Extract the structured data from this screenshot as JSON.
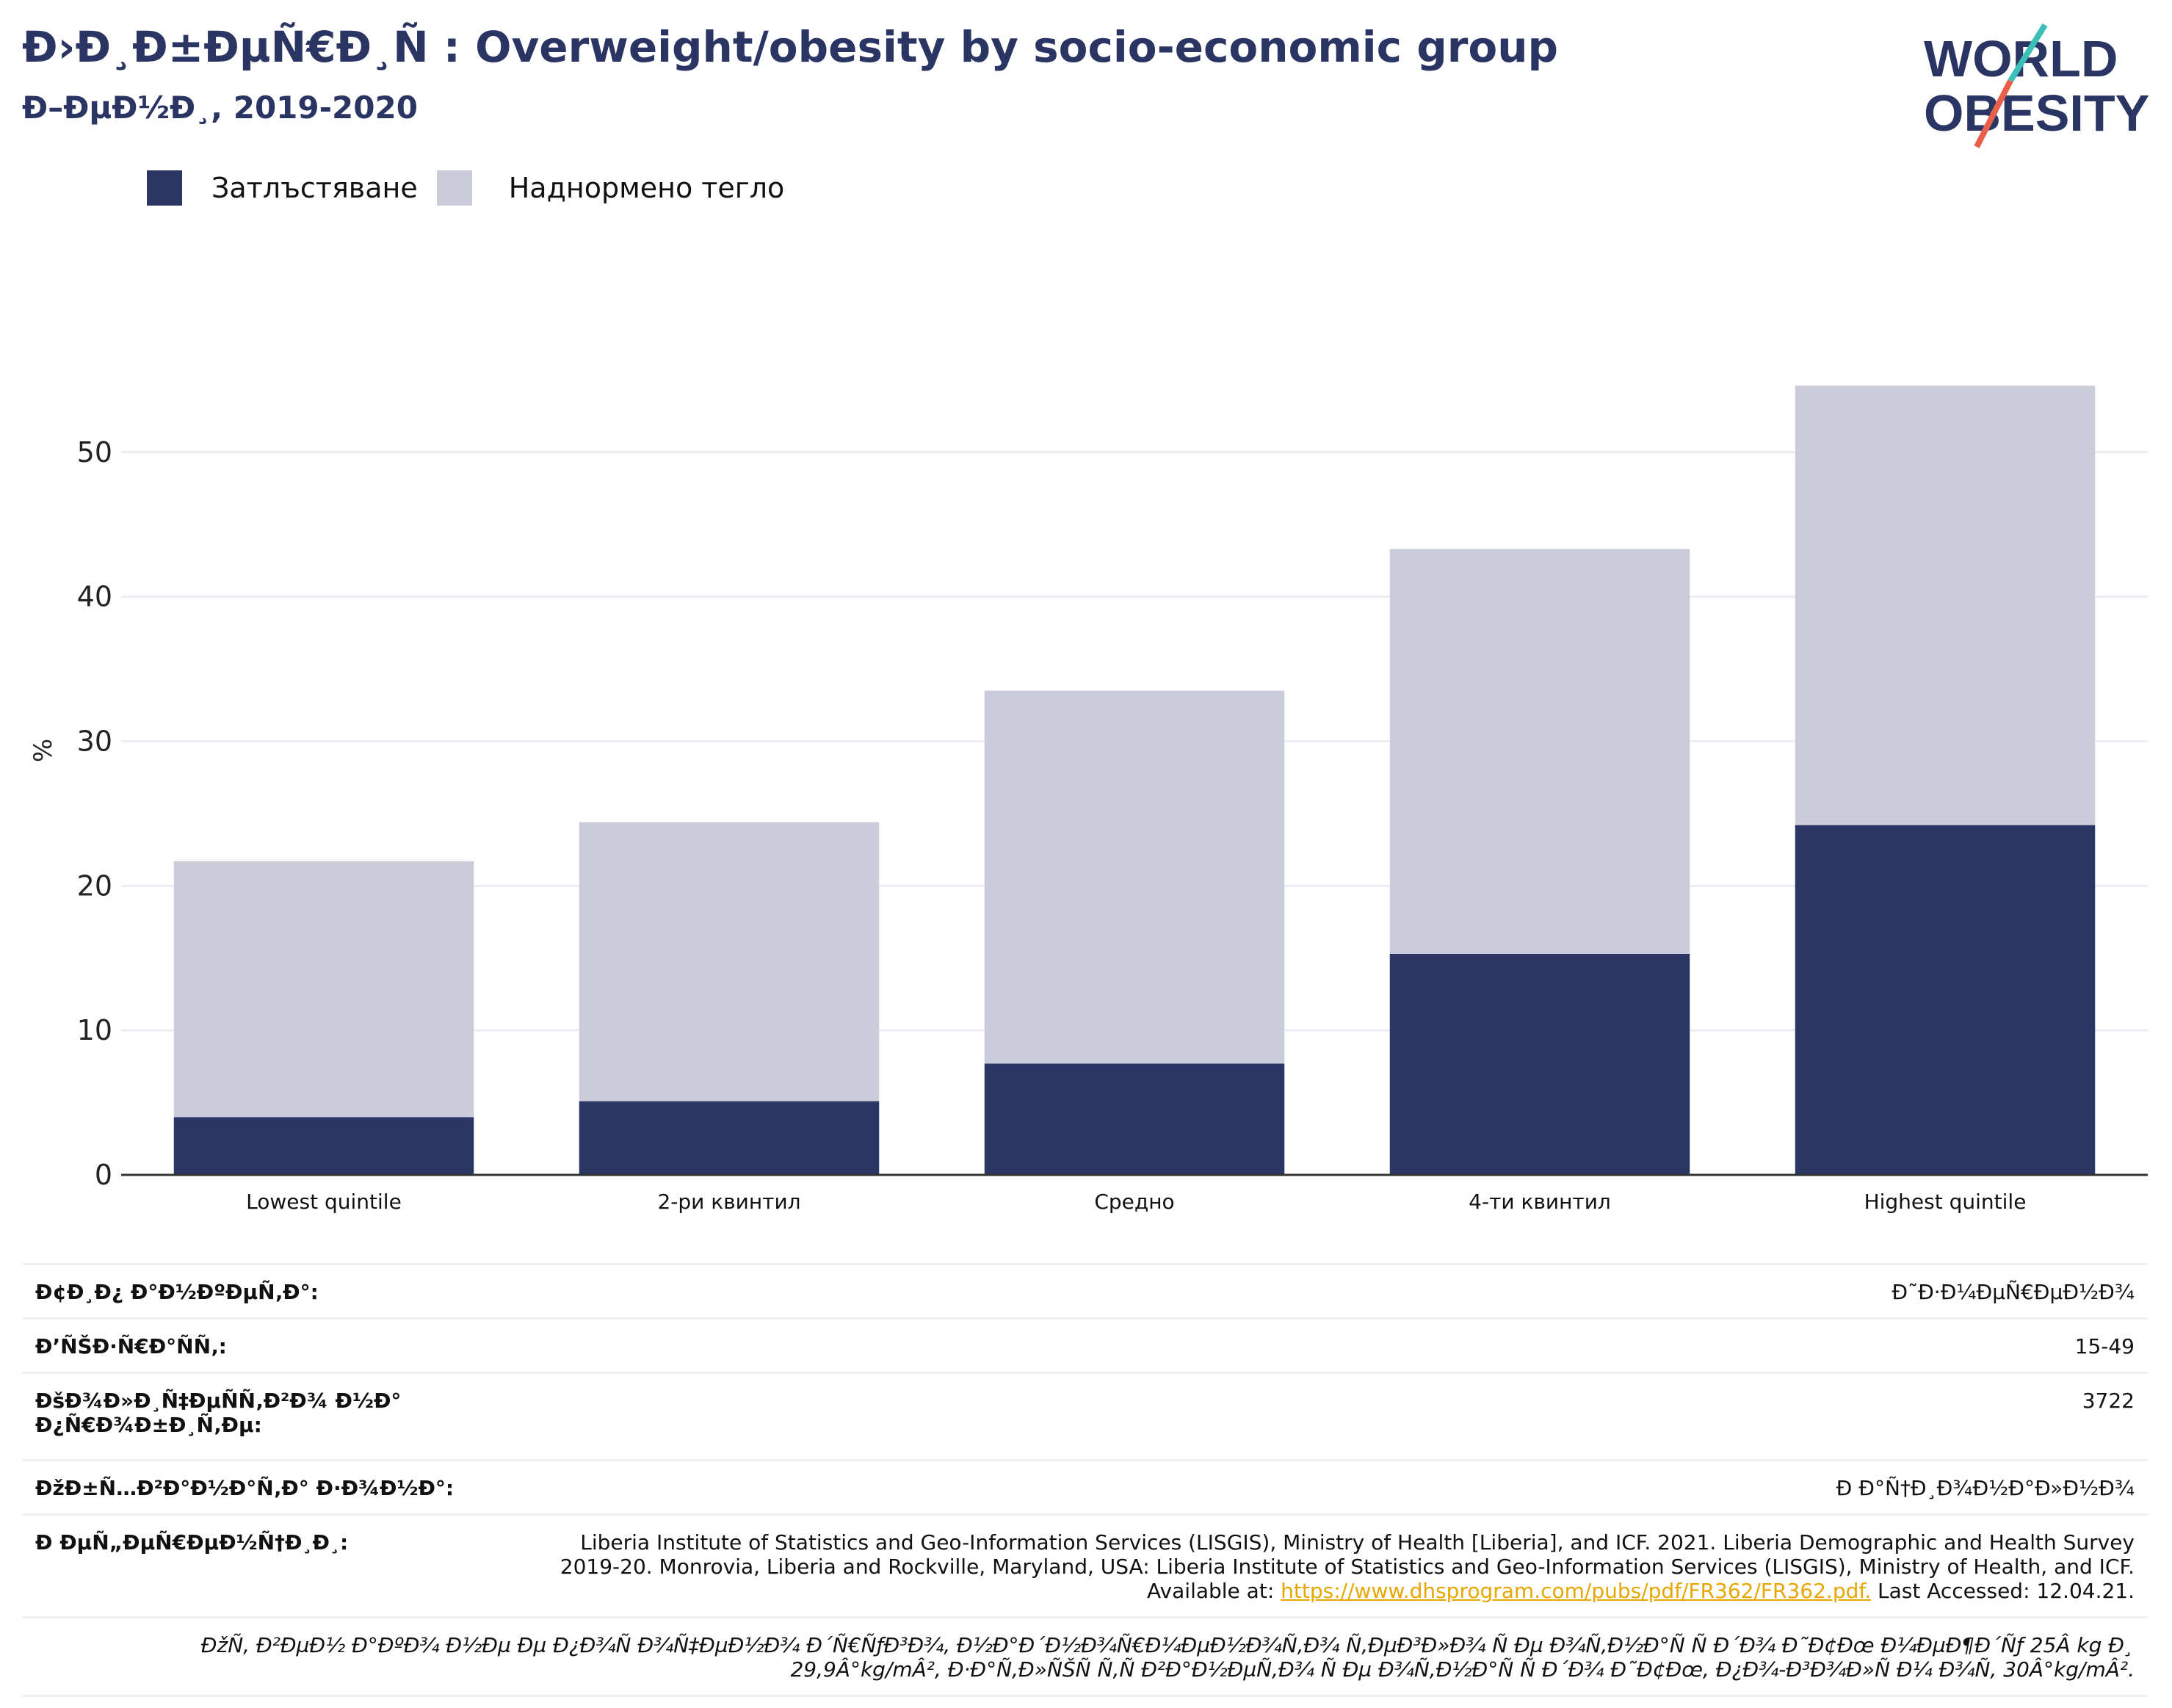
{
  "header": {
    "title": "Ð›Ð¸Ð±ÐµÑ€Ð¸Ñ : Overweight/obesity by socio-economic group",
    "subtitle": "Ð–ÐµÐ½Ð¸, 2019-2020"
  },
  "logo": {
    "line1": "WORLD",
    "line2": "OBESITY",
    "icon": "world-obesity-logo"
  },
  "colors": {
    "obesity": "#2b3664",
    "overweight": "#cacdd9",
    "accent_orange": "#e8604c",
    "accent_teal": "#3bbfb8",
    "link": "#e8a600"
  },
  "chart_data": {
    "type": "bar",
    "stacked": true,
    "categories": [
      "Lowest quintile",
      "2-ри квинтил",
      "Средно",
      "4-ти квинтил",
      "Highest quintile"
    ],
    "series": [
      {
        "name": "Затлъстяване",
        "values": [
          4.0,
          5.1,
          7.7,
          15.3,
          24.2
        ]
      },
      {
        "name": "Наднормено тегло",
        "values": [
          17.7,
          19.3,
          25.8,
          28.0,
          30.4
        ]
      }
    ],
    "ylabel": "%",
    "ylim": [
      0,
      57
    ],
    "yticks": [
      0,
      10,
      20,
      30,
      40,
      50
    ],
    "grid": true,
    "legend_position": "top-left"
  },
  "info": {
    "rows": [
      {
        "key": "Ð¢Ð¸Ð¿ Ð°Ð½ÐºÐµÑ‚Ð°:",
        "value": "Ð˜Ð·Ð¼ÐµÑ€ÐµÐ½Ð¾"
      },
      {
        "key": "Ð’ÑŠÐ·Ñ€Ð°ÑÑ‚:",
        "value": "15-49"
      },
      {
        "key": "ÐšÐ¾Ð»Ð¸Ñ‡ÐµÑÑ‚Ð²Ð¾ Ð½Ð° Ð¿Ñ€Ð¾Ð±Ð¸Ñ‚Ðµ:",
        "value": "3722"
      },
      {
        "key": "ÐžÐ±Ñ…Ð²Ð°Ð½Ð°Ñ‚Ð° Ð·Ð¾Ð½Ð°:",
        "value": "Ð Ð°Ñ†Ð¸Ð¾Ð½Ð°Ð»Ð½Ð¾"
      }
    ],
    "source_key": "Ð ÐµÑ„ÐµÑ€ÐµÐ½Ñ†Ð¸Ð¸:",
    "source_text": "Liberia Institute of Statistics and Geo-Information Services (LISGIS), Ministry of Health [Liberia], and ICF. 2021. Liberia Demographic and Health Survey 2019-20. Monrovia, Liberia and Rockville, Maryland, USA: Liberia Institute of Statistics and Geo-Information Services (LISGIS), Ministry of Health, and ICF. Available at:",
    "source_link": "https://www.dhsprogram.com/pubs/pdf/FR362/FR362.pdf.",
    "source_accessed": "Last Accessed: 12.04.21.",
    "note": "ÐžÑ‚ Ð²ÐµÐ½ Ð°ÐºÐ¾ Ð½Ðµ Ðµ Ð¿Ð¾Ñ Ð¾Ñ‡ÐµÐ½Ð¾ Ð´Ñ€ÑƒÐ³Ð¾, Ð½Ð°Ð´Ð½Ð¾Ñ€Ð¼ÐµÐ½Ð¾Ñ‚Ð¾ Ñ‚ÐµÐ³Ð»Ð¾ Ñ Ðµ Ð¾Ñ‚Ð½Ð°Ñ Ñ  Ð´Ð¾ Ð˜Ð¢Ðœ Ð¼ÐµÐ¶Ð´Ñƒ 25Â kg Ð¸ 29,9Â°kg/mÂ², Ð·Ð°Ñ‚Ð»ÑŠÑ Ñ‚Ñ Ð²Ð°Ð½ÐµÑ‚Ð¾ Ñ Ðµ Ð¾Ñ‚Ð½Ð°Ñ Ñ  Ð´Ð¾ Ð˜Ð¢Ðœ, Ð¿Ð¾-Ð³Ð¾Ð»Ñ Ð¼ Ð¾Ñ‚ 30Â°kg/mÂ²."
  }
}
